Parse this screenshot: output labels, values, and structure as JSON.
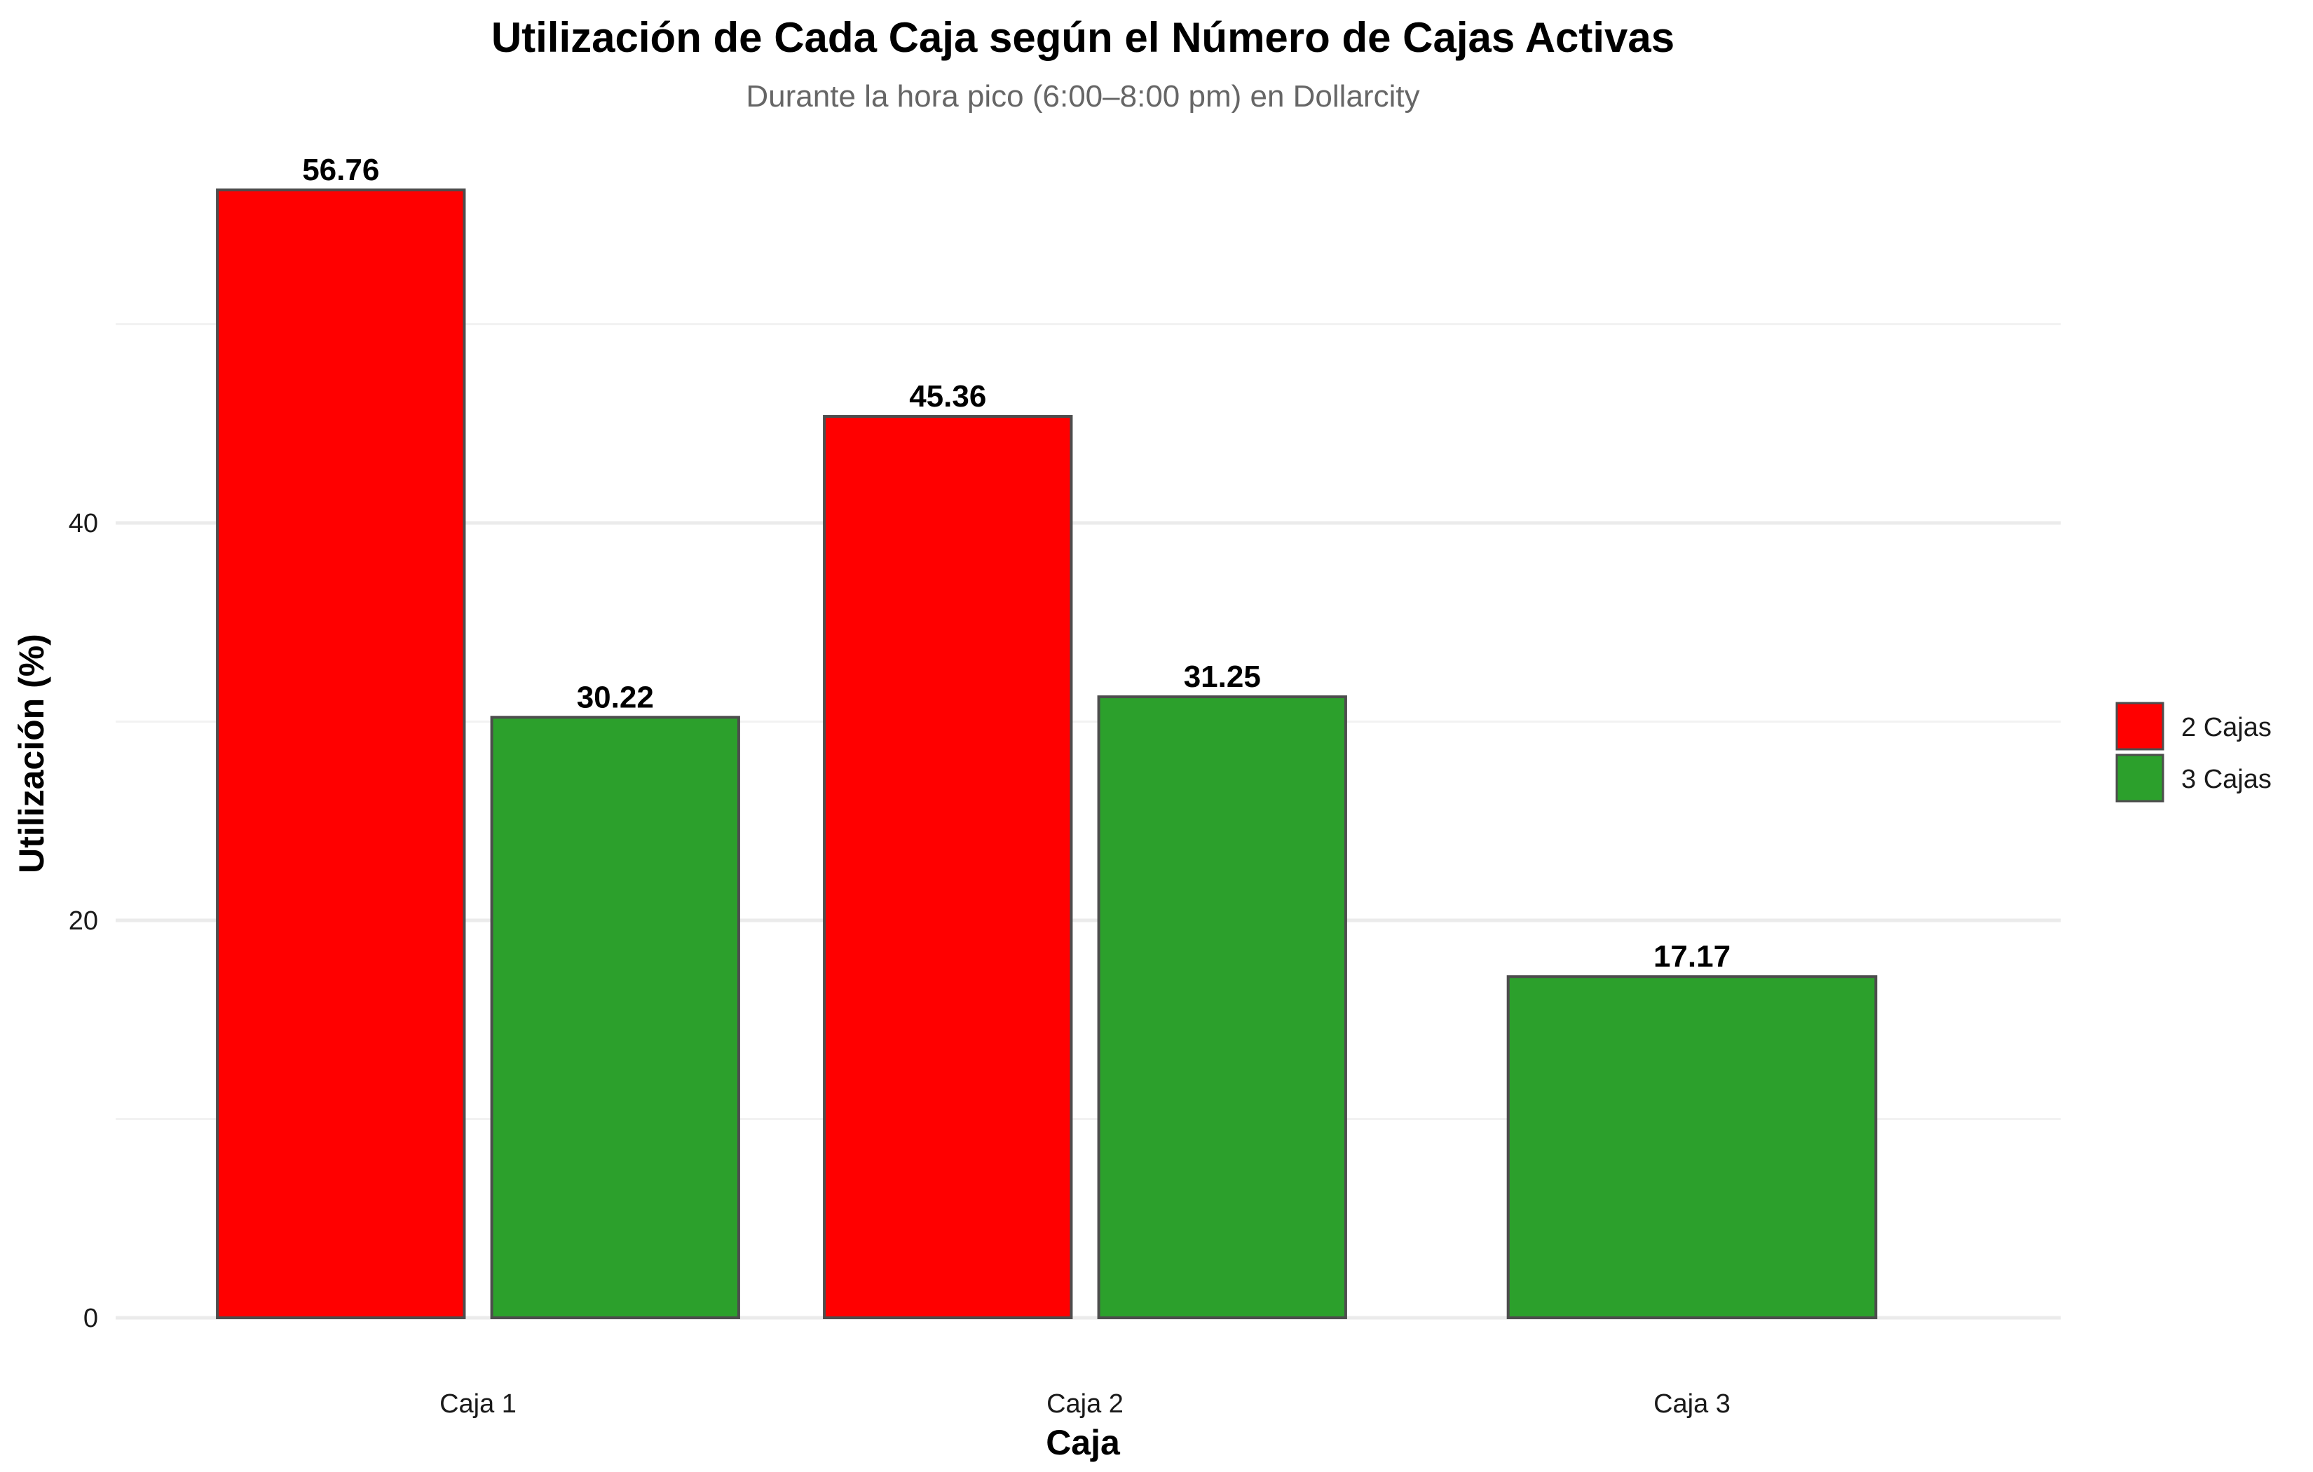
{
  "chart_data": {
    "type": "bar",
    "title": "Utilización de Cada Caja según el Número de Cajas Activas",
    "subtitle": "Durante la hora pico (6:00–8:00 pm) en Dollarcity",
    "xlabel": "Caja",
    "ylabel": "Utilización (%)",
    "categories": [
      "Caja 1",
      "Caja 2",
      "Caja 3"
    ],
    "series": [
      {
        "name": "2 Cajas",
        "color": "#ff0000",
        "values": [
          56.76,
          45.36,
          null
        ]
      },
      {
        "name": "3 Cajas",
        "color": "#2ca02c",
        "values": [
          30.22,
          31.25,
          17.17
        ]
      }
    ],
    "data_labels": [
      "56.76",
      "45.36",
      "30.22",
      "31.25",
      "17.17"
    ],
    "ylim": [
      0,
      59
    ],
    "yticks": [
      0,
      20,
      40
    ],
    "ytick_labels": [
      "0",
      "20",
      "40"
    ],
    "grid": true,
    "legend_position": "right"
  }
}
